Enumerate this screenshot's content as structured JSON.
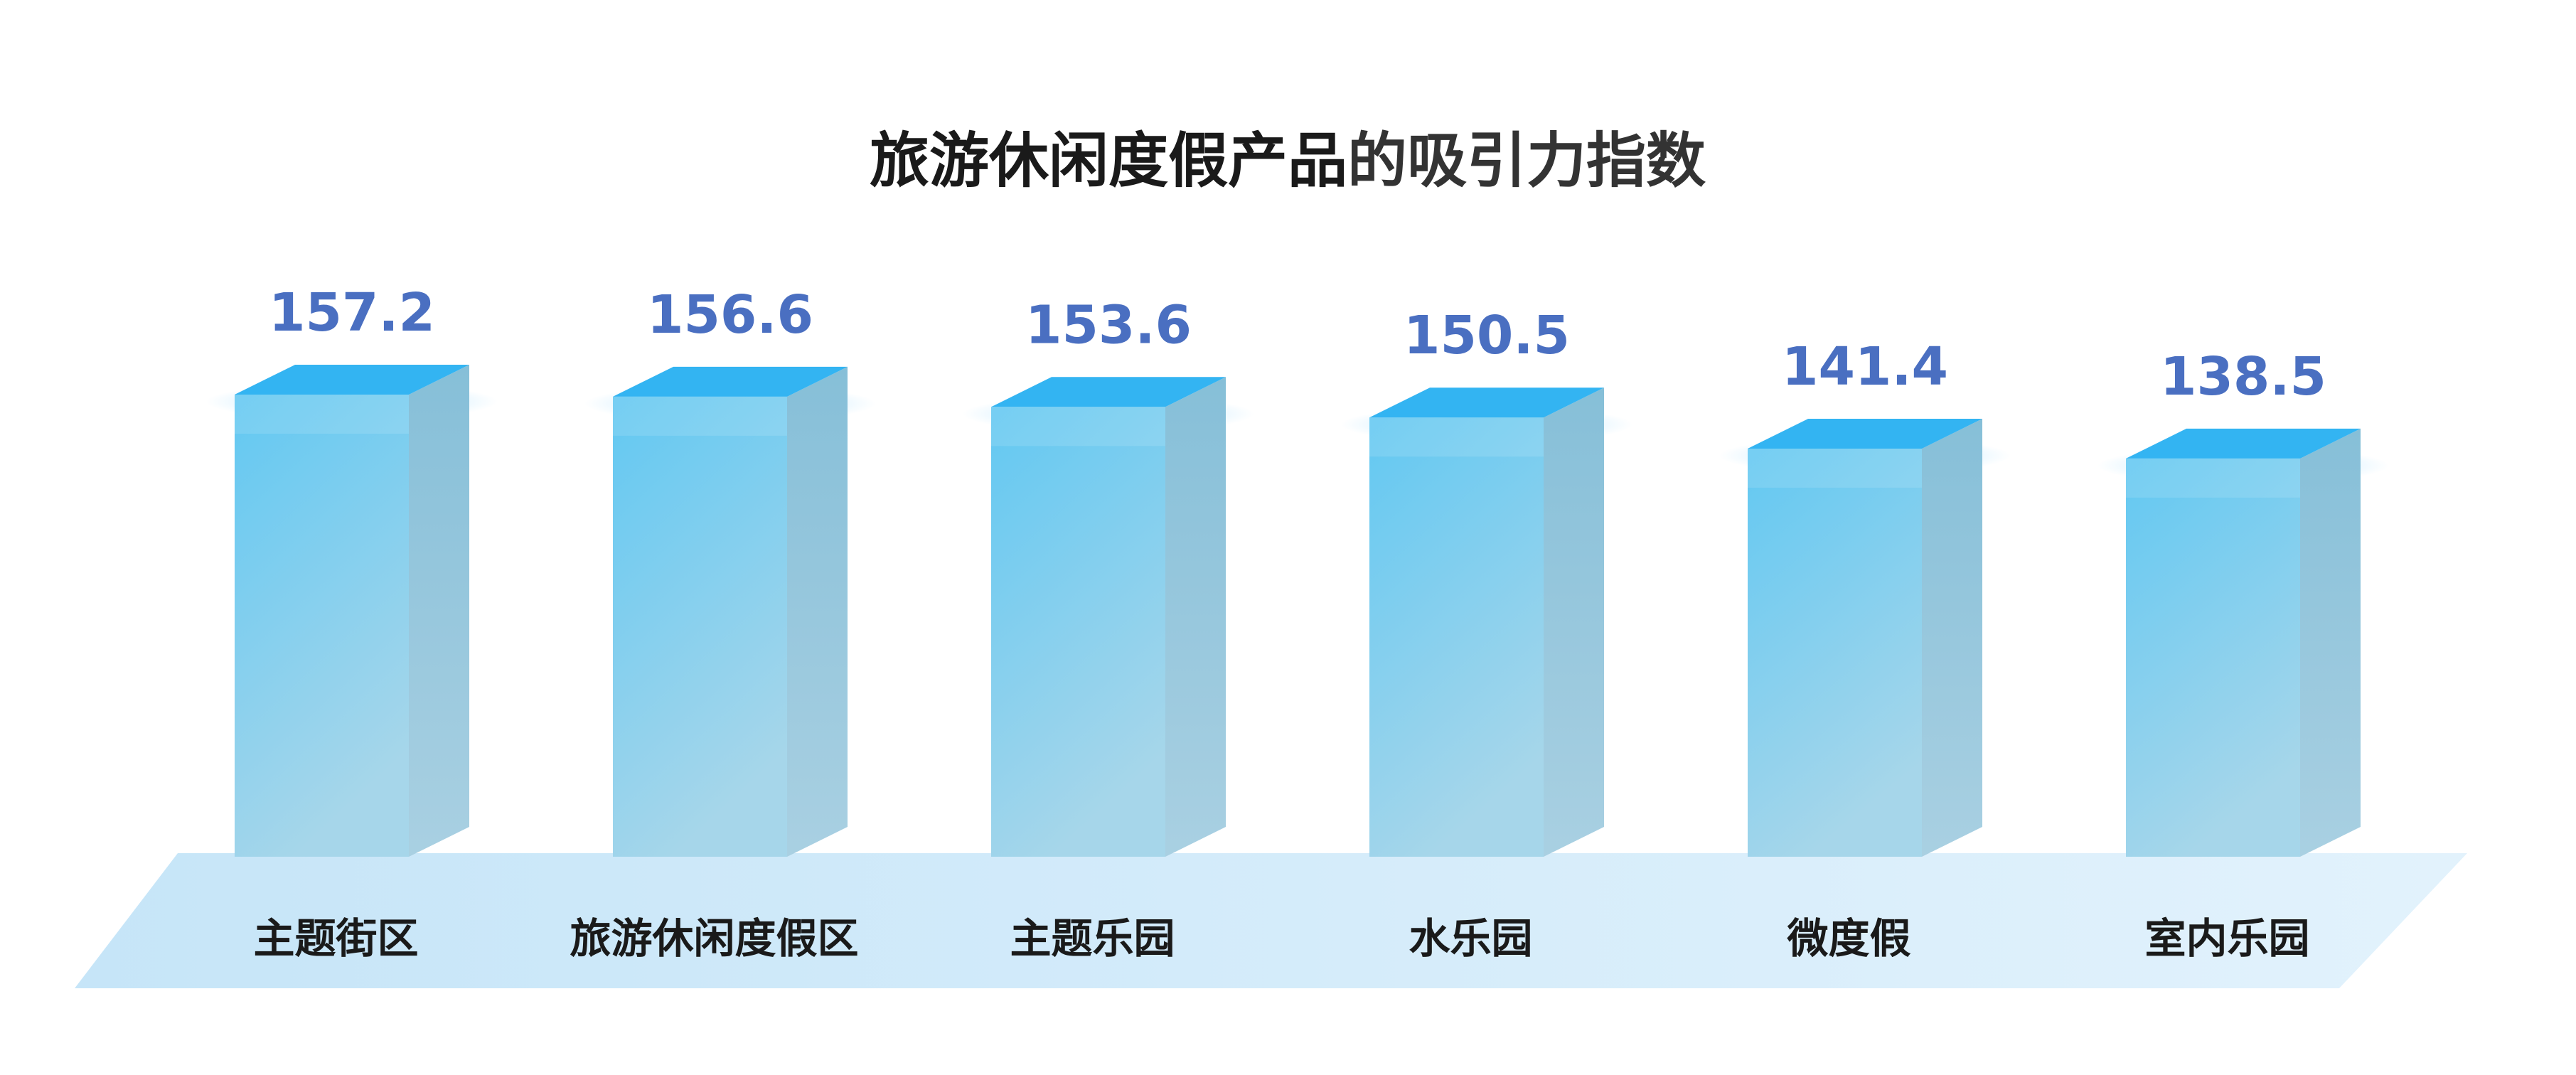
{
  "colors": {
    "title_primary": "#1a1a1a",
    "title_secondary": "#333333",
    "value_label": "#4a6fc1",
    "bar_front_top": "#62c8f2",
    "bar_front_bottom": "#a6d6ea",
    "bar_side_top": "#86bfd8",
    "bar_side_bottom": "#a9d0e2",
    "bar_top": "#33b4f2",
    "floor_left": "#c6e5f8",
    "floor_right": "#e2f2fc",
    "category_label": "#1a1a1a"
  },
  "chart_data": {
    "type": "bar",
    "title": "旅游休闲度假产品的吸引力指数",
    "title_parts": [
      "旅游休闲度假产品",
      "的吸引力指数"
    ],
    "categories": [
      "主题街区",
      "旅游休闲度假区",
      "主题乐园",
      "水乐园",
      "微度假",
      "室内乐园"
    ],
    "values": [
      157.2,
      156.6,
      153.6,
      150.5,
      141.4,
      138.5
    ],
    "value_labels": [
      "157.2",
      "156.6",
      "153.6",
      "150.5",
      "141.4",
      "138.5"
    ],
    "xlabel": "",
    "ylabel": "",
    "grid": false,
    "legend": "none"
  }
}
